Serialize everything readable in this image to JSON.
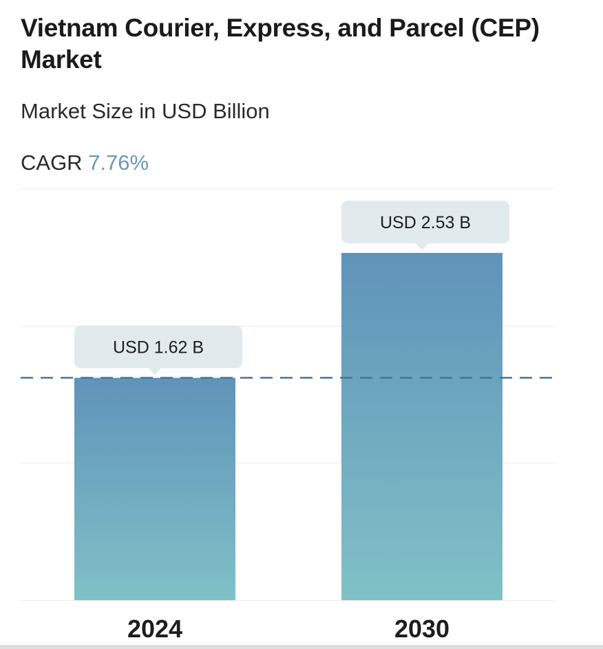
{
  "header": {
    "title": "Vietnam Courier, Express, and Parcel (CEP) Market",
    "subtitle": "Market Size in USD Billion",
    "cagr_label": "CAGR",
    "cagr_value": "7.76%"
  },
  "colors": {
    "bar_top": "#5f93b9",
    "bar_bottom": "#80c1c7",
    "callout_bg": "#e1eaed",
    "dashed_line": "#4a7394",
    "gridline": "#ececec",
    "cagr_accent": "#6a97b8"
  },
  "chart_data": {
    "type": "bar",
    "categories": [
      "2024",
      "2030"
    ],
    "values": [
      1.62,
      2.53
    ],
    "value_labels": [
      "USD 1.62 B",
      "USD 2.53 B"
    ],
    "ylim": [
      0,
      3
    ],
    "reference_line": 1.62,
    "grid": true
  }
}
